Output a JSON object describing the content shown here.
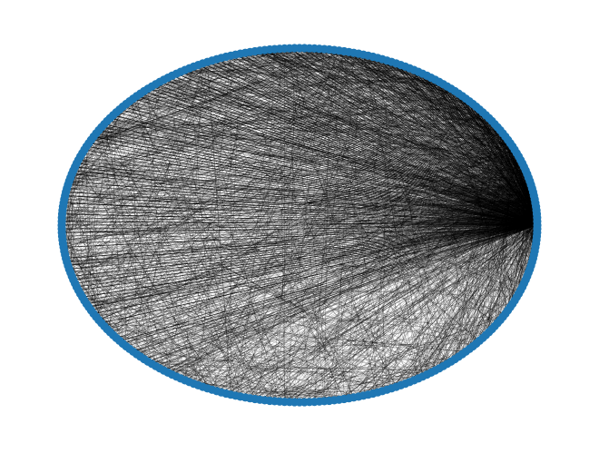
{
  "graph": {
    "layout": "circular",
    "node_count": 300,
    "edge_style": "thin-black",
    "node_color": "#1f77b4",
    "edge_color": "#000000",
    "background": "#ffffff"
  }
}
